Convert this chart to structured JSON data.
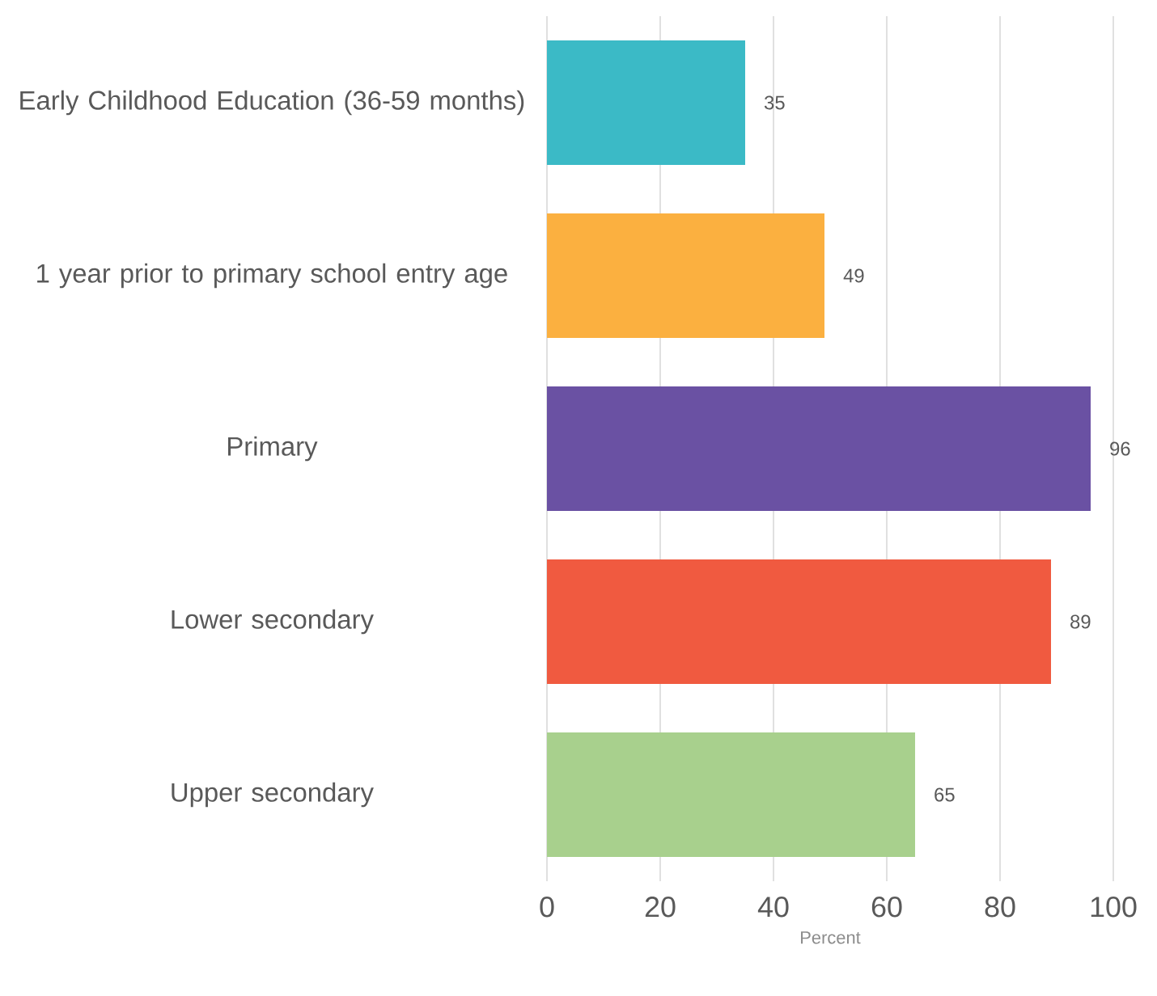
{
  "chart_data": {
    "type": "bar",
    "orientation": "horizontal",
    "xlabel": "Percent",
    "categories": [
      "Early Childhood Education (36-59 months)",
      "1 year prior to primary school entry age",
      "Primary",
      "Lower secondary",
      "Upper secondary"
    ],
    "values": [
      35,
      49,
      96,
      89,
      65
    ],
    "colors": [
      "#3bbac6",
      "#fbb040",
      "#6a51a3",
      "#f05a40",
      "#a8d08d"
    ],
    "xlim": [
      0,
      100
    ],
    "xticks": [
      0,
      20,
      40,
      60,
      80,
      100
    ],
    "grid": "x",
    "data_labels": true
  }
}
